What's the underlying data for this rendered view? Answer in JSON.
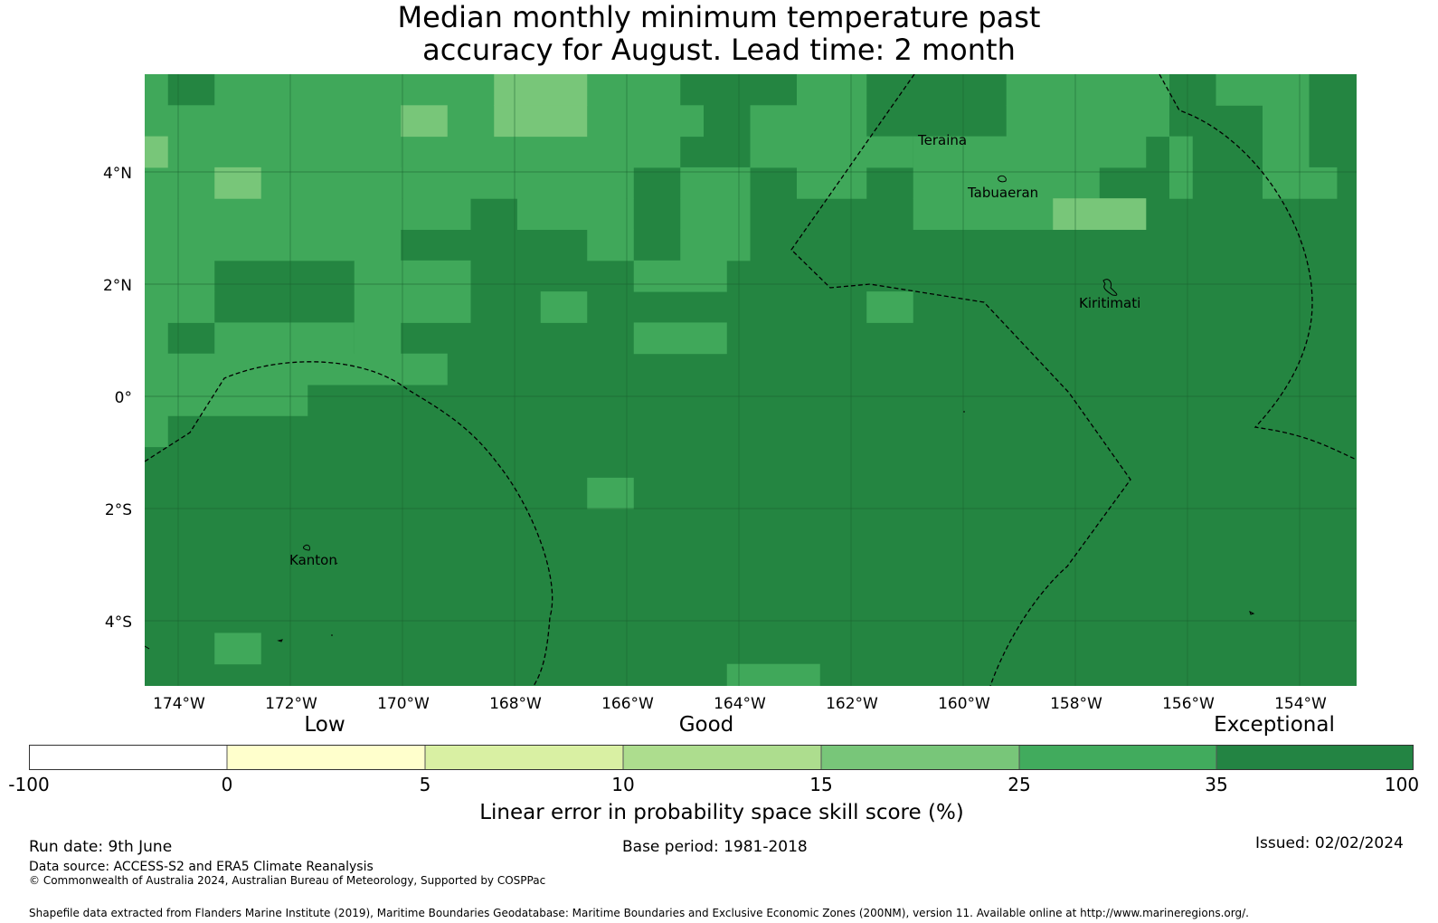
{
  "title": {
    "line1": "Median monthly minimum temperature past",
    "line2": "accuracy for August. Lead time: 2 month"
  },
  "map": {
    "lat_ticks": [
      "4°N",
      "2°N",
      "0°",
      "2°S",
      "4°S"
    ],
    "lon_ticks": [
      "174°W",
      "172°W",
      "170°W",
      "168°W",
      "166°W",
      "164°W",
      "162°W",
      "160°W",
      "158°W",
      "156°W",
      "154°W"
    ],
    "places": [
      "Teraina",
      "Tabuaeran",
      "Kiritimati",
      "Kanton"
    ],
    "colors": {
      "exceptional": "#248541",
      "level25": "#40a85a",
      "level15": "#78c679",
      "gridline": "#1a5e2e",
      "boundary": "#000000"
    }
  },
  "colorbar": {
    "categories": [
      "Low",
      "Good",
      "Exceptional"
    ],
    "ticks": [
      "-100",
      "0",
      "5",
      "10",
      "15",
      "25",
      "35",
      "100"
    ],
    "colors": [
      "#ffffff",
      "#ffffcc",
      "#d9f0a3",
      "#addd8e",
      "#78c679",
      "#41ab5d",
      "#238443"
    ],
    "label": "Linear error in probability space skill score (%)"
  },
  "footer": {
    "run_date": "Run date: 9th June",
    "base_period": "Base period: 1981-2018",
    "issued": "Issued: 02/02/2024",
    "data_source": "Data source: ACCESS-S2 and ERA5 Climate Reanalysis",
    "copyright": "© Commonwealth of Australia 2024, Australian Bureau of Meteorology, Supported by COSPPac",
    "shapefile": "Shapefile data extracted from Flanders Marine Institute (2019), Maritime Boundaries Geodatabase: Maritime Boundaries and Exclusive Economic Zones (200NM), version 11. Available online at http://www.marineregions.org/."
  }
}
